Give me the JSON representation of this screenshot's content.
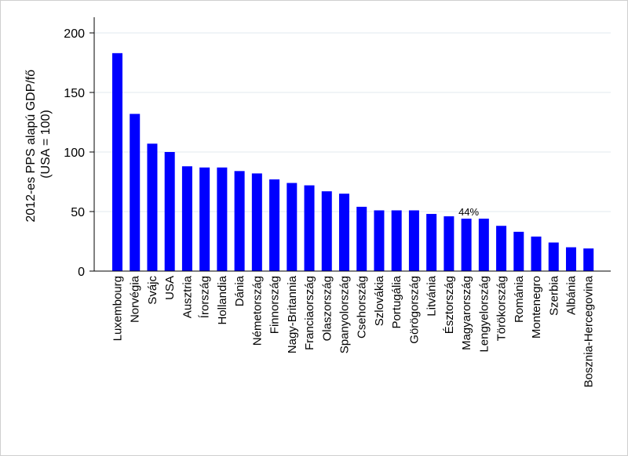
{
  "chart_data": {
    "type": "bar",
    "ylabel_lines": [
      "2012-es PPS alapú GDP/fő",
      "(USA = 100)"
    ],
    "ylim": [
      0,
      210
    ],
    "yticks": [
      0,
      50,
      100,
      150,
      200
    ],
    "grid": true,
    "bar_color": "#0000ff",
    "categories": [
      "Luxembourg",
      "Norvégia",
      "Svájc",
      "USA",
      "Ausztria",
      "Írország",
      "Hollandia",
      "Dánia",
      "Németország",
      "Finnország",
      "Nagy-Britannia",
      "Franciaország",
      "Olaszország",
      "Spanyolország",
      "Csehország",
      "Szlovákia",
      "Portugália",
      "Görögország",
      "Litvánia",
      "Észtország",
      "Magyarország",
      "Lengyelország",
      "Törökország",
      "Románia",
      "Montenegro",
      "Szerbia",
      "Albánia",
      "Bosznia-Hercegovina"
    ],
    "values": [
      183,
      132,
      107,
      100,
      88,
      87,
      87,
      84,
      82,
      77,
      74,
      72,
      67,
      65,
      54,
      51,
      51,
      51,
      48,
      46,
      44,
      44,
      38,
      33,
      29,
      24,
      20,
      19
    ],
    "annotation": {
      "category": "Magyarország",
      "text": "44%"
    }
  }
}
